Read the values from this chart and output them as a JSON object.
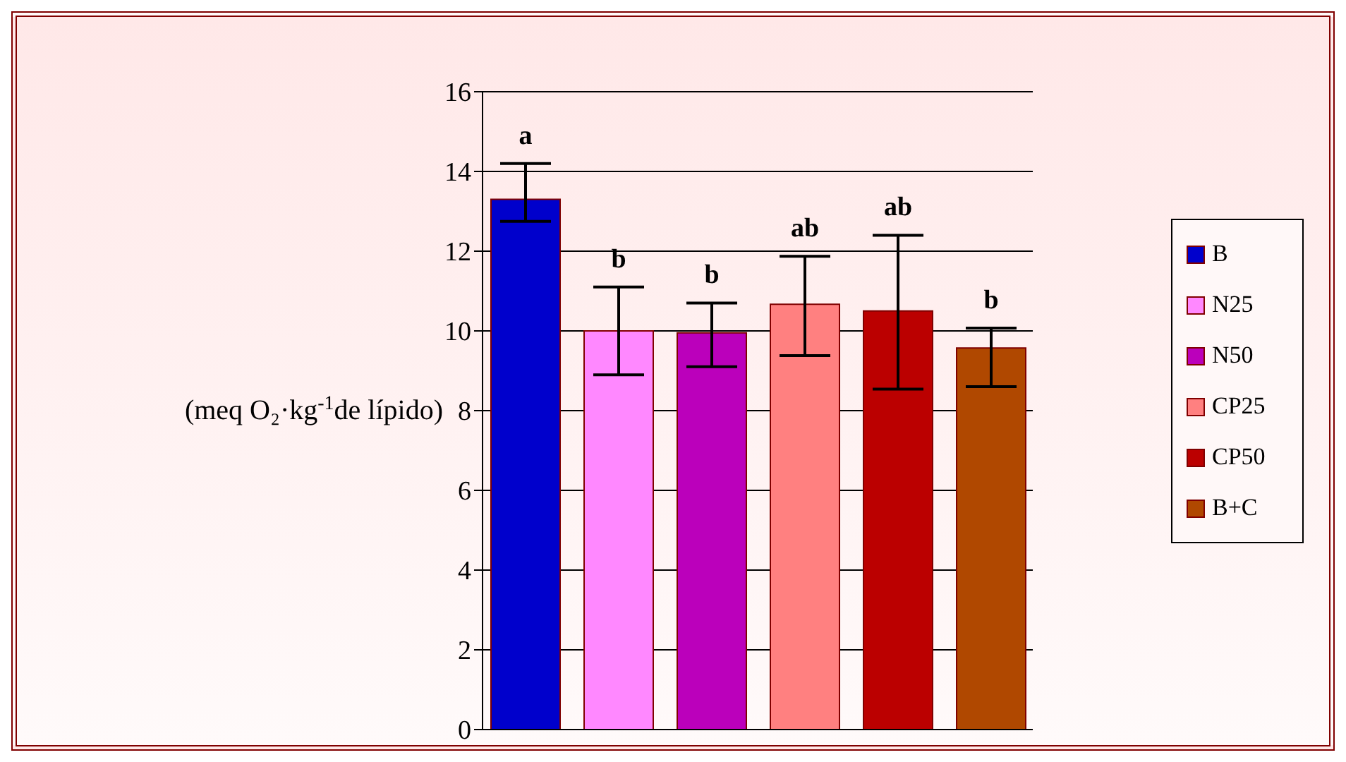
{
  "chart_data": {
    "type": "bar",
    "ylabel": "(meq O₂·kg$^{-1}$de lípido)",
    "categories": [
      null
    ],
    "series": [
      {
        "name": "B",
        "color": "#0000cc",
        "values": [
          13.3
        ],
        "errors": [
          [
            12.75,
            14.2
          ]
        ]
      },
      {
        "name": "N25",
        "color": "#ff88ff",
        "values": [
          10.0
        ],
        "errors": [
          [
            8.9,
            11.1
          ]
        ]
      },
      {
        "name": "N50",
        "color": "#bb00bb",
        "values": [
          9.95
        ],
        "errors": [
          [
            9.1,
            10.7
          ]
        ]
      },
      {
        "name": "CP25",
        "color": "#ff8080",
        "values": [
          10.67
        ],
        "errors": [
          [
            9.38,
            11.87
          ]
        ]
      },
      {
        "name": "CP50",
        "color": "#bb0000",
        "values": [
          10.5
        ],
        "errors": [
          [
            8.54,
            12.4
          ]
        ]
      },
      {
        "name": "B+C",
        "color": "#b04800",
        "values": [
          9.57
        ],
        "errors": [
          [
            8.6,
            10.07
          ]
        ]
      }
    ],
    "annotations": [
      "a",
      "b",
      "b",
      "ab",
      "ab",
      "b"
    ],
    "ylim": [
      0,
      16
    ],
    "yticks": [
      0,
      2,
      4,
      6,
      8,
      10,
      12,
      14,
      16
    ],
    "grid": "y",
    "legend": "right",
    "tick_labels": "y"
  }
}
